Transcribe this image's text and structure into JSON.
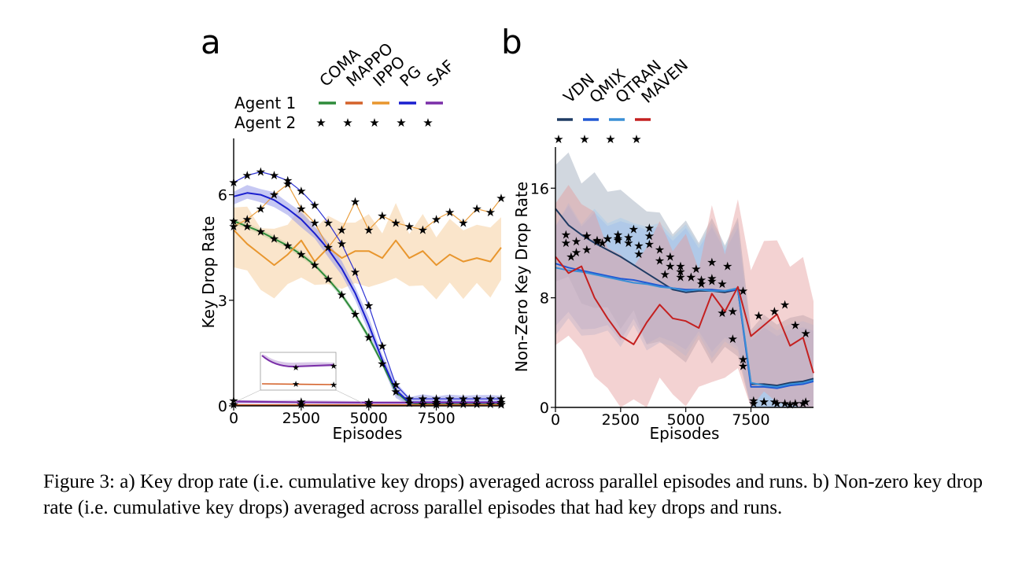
{
  "figure": {
    "caption": "Figure 3: a) Key drop rate (i.e. cumulative key drops) averaged across parallel episodes and runs. b) Non-zero key drop rate (i.e. cumulative key drops) averaged across parallel episodes that had key drops and runs."
  },
  "chart_data": [
    {
      "panel_label": "a",
      "type": "line",
      "xlabel": "Episodes",
      "ylabel": "Key Drop Rate",
      "xlim": [
        0,
        9900
      ],
      "ylim": [
        0,
        7.6
      ],
      "xticks": [
        0,
        2500,
        5000,
        7500
      ],
      "yticks": [
        0,
        3,
        6
      ],
      "legend": {
        "position": "top",
        "row_labels": [
          "Agent 1",
          "Agent 2"
        ],
        "methods": [
          "COMA",
          "MAPPO",
          "IPPO",
          "PG",
          "SAF"
        ]
      },
      "colors": {
        "COMA": "#2e8b3a",
        "MAPPO": "#d4622a",
        "IPPO": "#e8962e",
        "PG": "#1a1fcf",
        "SAF": "#7a2ea8"
      },
      "inset": {
        "description_visible": false,
        "series": [
          "SAF",
          "MAPPO"
        ]
      },
      "series": [
        {
          "name": "COMA",
          "agent": "Agent 1",
          "x": [
            0,
            500,
            1000,
            1500,
            2000,
            2500,
            3000,
            3500,
            4000,
            4500,
            5000,
            5500,
            6000,
            6500,
            7000,
            7500,
            8000,
            8500,
            9000,
            9500,
            9900
          ],
          "y": [
            5.25,
            5.1,
            4.95,
            4.75,
            4.55,
            4.3,
            4.0,
            3.6,
            3.15,
            2.6,
            1.95,
            1.2,
            0.4,
            0.08,
            0.05,
            0.04,
            0.04,
            0.04,
            0.04,
            0.04,
            0.04
          ]
        },
        {
          "name": "COMA",
          "agent": "Agent 2",
          "x": [
            0,
            500,
            1000,
            1500,
            2000,
            2500,
            3000,
            3500,
            4000,
            4500,
            5000,
            5500,
            6000,
            6500,
            7000,
            7500,
            8000,
            8500,
            9000,
            9500,
            9900
          ],
          "y": [
            5.25,
            5.1,
            4.95,
            4.75,
            4.55,
            4.3,
            4.0,
            3.6,
            3.15,
            2.6,
            1.95,
            1.2,
            0.4,
            0.08,
            0.05,
            0.04,
            0.04,
            0.04,
            0.04,
            0.04,
            0.04
          ]
        },
        {
          "name": "MAPPO",
          "agent": "Agent 1",
          "x": [
            0,
            2500,
            5000,
            7500,
            9900
          ],
          "y": [
            0.02,
            0.02,
            0.02,
            0.02,
            0.02
          ]
        },
        {
          "name": "MAPPO",
          "agent": "Agent 2",
          "x": [
            0,
            2500,
            5000,
            7500,
            9900
          ],
          "y": [
            0.03,
            0.03,
            0.03,
            0.03,
            0.03
          ]
        },
        {
          "name": "IPPO",
          "agent": "Agent 1",
          "x": [
            0,
            500,
            1000,
            1500,
            2000,
            2500,
            3000,
            3500,
            4000,
            4500,
            5000,
            5500,
            6000,
            6500,
            7000,
            7500,
            8000,
            8500,
            9000,
            9500,
            9900
          ],
          "y": [
            5.0,
            4.6,
            4.3,
            4.0,
            4.3,
            4.7,
            4.1,
            4.5,
            4.2,
            4.4,
            4.4,
            4.2,
            4.7,
            4.2,
            4.4,
            4.0,
            4.3,
            4.1,
            4.2,
            4.1,
            4.5
          ]
        },
        {
          "name": "IPPO",
          "agent": "Agent 2",
          "x": [
            0,
            500,
            1000,
            1500,
            2000,
            2500,
            3000,
            3500,
            4000,
            4500,
            5000,
            5500,
            6000,
            6500,
            7000,
            7500,
            8000,
            8500,
            9000,
            9500,
            9900
          ],
          "y": [
            5.1,
            5.3,
            5.6,
            6.0,
            6.3,
            5.6,
            5.2,
            4.5,
            5.0,
            5.8,
            5.0,
            5.4,
            5.2,
            5.1,
            5.0,
            5.3,
            5.5,
            5.2,
            5.6,
            5.5,
            5.9
          ]
        },
        {
          "name": "PG",
          "agent": "Agent 1",
          "x": [
            0,
            500,
            1000,
            1500,
            2000,
            2500,
            3000,
            3500,
            4000,
            4500,
            5000,
            5500,
            6000,
            6500,
            7000,
            7500,
            8000,
            8500,
            9000,
            9500,
            9900
          ],
          "y": [
            5.95,
            6.05,
            6.0,
            5.85,
            5.6,
            5.3,
            4.9,
            4.45,
            3.9,
            3.2,
            2.3,
            1.3,
            0.45,
            0.1,
            0.1,
            0.1,
            0.1,
            0.1,
            0.1,
            0.1,
            0.1
          ]
        },
        {
          "name": "PG",
          "agent": "Agent 2",
          "x": [
            0,
            500,
            1000,
            1500,
            2000,
            2500,
            3000,
            3500,
            4000,
            4500,
            5000,
            5500,
            6000,
            6500,
            7000,
            7500,
            8000,
            8500,
            9000,
            9500,
            9900
          ],
          "y": [
            6.35,
            6.55,
            6.65,
            6.55,
            6.4,
            6.1,
            5.7,
            5.2,
            4.6,
            3.8,
            2.85,
            1.7,
            0.6,
            0.2,
            0.2,
            0.2,
            0.2,
            0.2,
            0.2,
            0.2,
            0.2
          ]
        },
        {
          "name": "SAF",
          "agent": "Agent 1",
          "x": [
            0,
            2500,
            5000,
            7500,
            9900
          ],
          "y": [
            0.12,
            0.1,
            0.09,
            0.09,
            0.09
          ]
        },
        {
          "name": "SAF",
          "agent": "Agent 2",
          "x": [
            0,
            2500,
            5000,
            7500,
            9900
          ],
          "y": [
            0.14,
            0.11,
            0.1,
            0.1,
            0.1
          ]
        }
      ]
    },
    {
      "panel_label": "b",
      "type": "line",
      "xlabel": "Episodes",
      "ylabel": "Non-Zero Key Drop Rate",
      "xlim": [
        0,
        9900
      ],
      "ylim": [
        0,
        19
      ],
      "xticks": [
        0,
        2500,
        5000,
        7500
      ],
      "yticks": [
        0,
        8,
        16
      ],
      "legend": {
        "position": "top",
        "methods": [
          "VDN",
          "QMIX",
          "QTRAN",
          "MAVEN"
        ]
      },
      "colors": {
        "VDN": "#1f3b63",
        "QMIX": "#2158d4",
        "QTRAN": "#3a8fd6",
        "MAVEN": "#c42020"
      },
      "series": [
        {
          "name": "VDN",
          "agent": "Agent 1",
          "x": [
            0,
            500,
            1000,
            1500,
            2000,
            2500,
            3000,
            3500,
            4000,
            4500,
            5000,
            5500,
            6000,
            6500,
            7000,
            7500,
            8000,
            8500,
            9000,
            9500,
            9900
          ],
          "y": [
            14.5,
            13.3,
            12.6,
            12.0,
            11.5,
            11.0,
            10.4,
            9.8,
            9.2,
            8.6,
            8.4,
            8.5,
            8.5,
            8.4,
            8.6,
            1.7,
            1.7,
            1.6,
            1.8,
            1.9,
            2.1
          ]
        },
        {
          "name": "VDN",
          "agent": "Agent 2",
          "x": [
            400,
            800,
            1200,
            1600,
            2000,
            2400,
            2800,
            3200,
            3600,
            4000,
            4400,
            4800,
            5200,
            5600,
            6000,
            6400,
            6800,
            7200,
            7600,
            8000,
            8500,
            9000,
            9500
          ],
          "y": [
            12.0,
            11.3,
            11.5,
            12.1,
            12.3,
            12.2,
            12.0,
            11.8,
            12.5,
            11.5,
            11.0,
            10.3,
            9.5,
            9.0,
            9.4,
            9.0,
            5.0,
            3.0,
            0.3,
            0.4,
            0.3,
            0.2,
            0.3
          ]
        },
        {
          "name": "QMIX",
          "agent": "Agent 1",
          "x": [
            0,
            500,
            1000,
            1500,
            2000,
            2500,
            3000,
            3500,
            4000,
            4500,
            5000,
            5500,
            6000,
            6500,
            7000,
            7500,
            8000,
            8500,
            9000,
            9500,
            9900
          ],
          "y": [
            10.5,
            10.2,
            10.0,
            9.8,
            9.6,
            9.4,
            9.3,
            9.1,
            8.9,
            8.7,
            8.6,
            8.6,
            8.6,
            8.5,
            8.6,
            1.5,
            1.5,
            1.4,
            1.6,
            1.7,
            1.9
          ]
        },
        {
          "name": "QMIX",
          "agent": "Agent 2",
          "x": [
            400,
            1200,
            2000,
            2800,
            3600,
            4400,
            5200,
            6000,
            6800,
            7600,
            8400,
            9200
          ],
          "y": [
            12.6,
            12.5,
            12.3,
            12.4,
            11.9,
            10.3,
            9.5,
            9.2,
            7.0,
            0.5,
            0.4,
            0.3
          ]
        },
        {
          "name": "QTRAN",
          "agent": "Agent 1",
          "x": [
            0,
            500,
            1000,
            1500,
            2000,
            2500,
            3000,
            3500,
            4000,
            4500,
            5000,
            5500,
            6000,
            6500,
            7000,
            7500,
            8000,
            8500,
            9000,
            9500,
            9900
          ],
          "y": [
            10.2,
            10.0,
            9.9,
            9.7,
            9.5,
            9.3,
            9.1,
            9.0,
            8.8,
            8.7,
            8.5,
            8.6,
            8.5,
            8.5,
            8.7,
            1.8,
            1.6,
            1.5,
            1.7,
            1.8,
            2.0
          ]
        },
        {
          "name": "QTRAN",
          "agent": "Agent 2",
          "x": [
            800,
            1600,
            2400,
            3200,
            4000,
            4800,
            5600,
            6400,
            7200,
            8000,
            8800,
            9600
          ],
          "y": [
            12.1,
            12.2,
            12.3,
            11.2,
            10.7,
            9.9,
            9.3,
            6.9,
            3.5,
            0.4,
            0.3,
            0.4
          ]
        },
        {
          "name": "MAVEN",
          "agent": "Agent 1",
          "x": [
            0,
            500,
            1000,
            1500,
            2000,
            2500,
            3000,
            3500,
            4000,
            4500,
            5000,
            5500,
            6000,
            6500,
            7000,
            7500,
            8000,
            8500,
            9000,
            9500,
            9900
          ],
          "y": [
            11.0,
            9.8,
            10.3,
            8.0,
            6.5,
            5.2,
            4.6,
            6.2,
            7.5,
            6.5,
            6.3,
            5.8,
            8.3,
            7.0,
            8.8,
            5.2,
            6.0,
            6.8,
            4.5,
            5.1,
            2.5
          ]
        },
        {
          "name": "MAVEN",
          "agent": "Agent 2",
          "x": [
            600,
            1200,
            1800,
            2400,
            3000,
            3600,
            4200,
            4800,
            5400,
            6000,
            6600,
            7200,
            7800,
            8400,
            8800,
            9200,
            9600
          ],
          "y": [
            11.0,
            12.5,
            12.0,
            12.6,
            13.0,
            13.1,
            9.7,
            9.5,
            10.1,
            10.6,
            10.3,
            8.5,
            6.7,
            7.0,
            7.5,
            6.0,
            5.4
          ]
        }
      ]
    }
  ]
}
